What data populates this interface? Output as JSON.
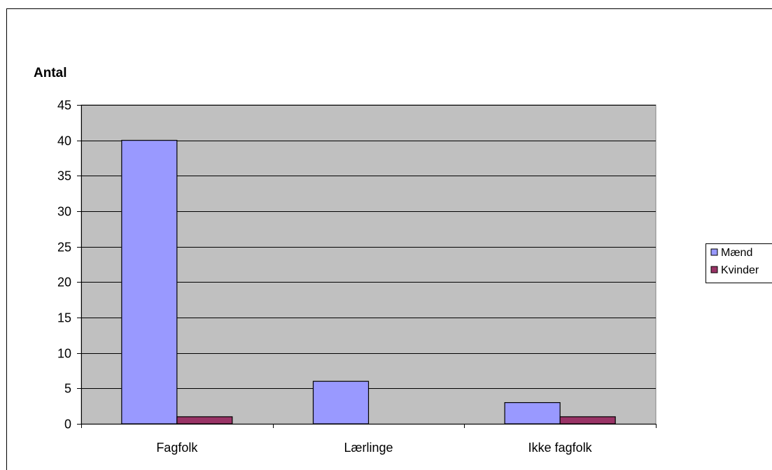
{
  "chart_data": {
    "type": "bar",
    "title": "",
    "xlabel": "",
    "ylabel": "Antal",
    "categories": [
      "Fagfolk",
      "Lærlinge",
      "Ikke fagfolk"
    ],
    "series": [
      {
        "name": "Mænd",
        "values": [
          40,
          6,
          3
        ],
        "color": "#9999ff"
      },
      {
        "name": "Kvinder",
        "values": [
          1,
          0,
          1
        ],
        "color": "#993366"
      }
    ],
    "ylim": [
      0,
      45
    ],
    "yticks": [
      0,
      5,
      10,
      15,
      20,
      25,
      30,
      35,
      40,
      45
    ],
    "grid": true,
    "legend_position": "right",
    "plot_background": "#c0c0c0"
  }
}
